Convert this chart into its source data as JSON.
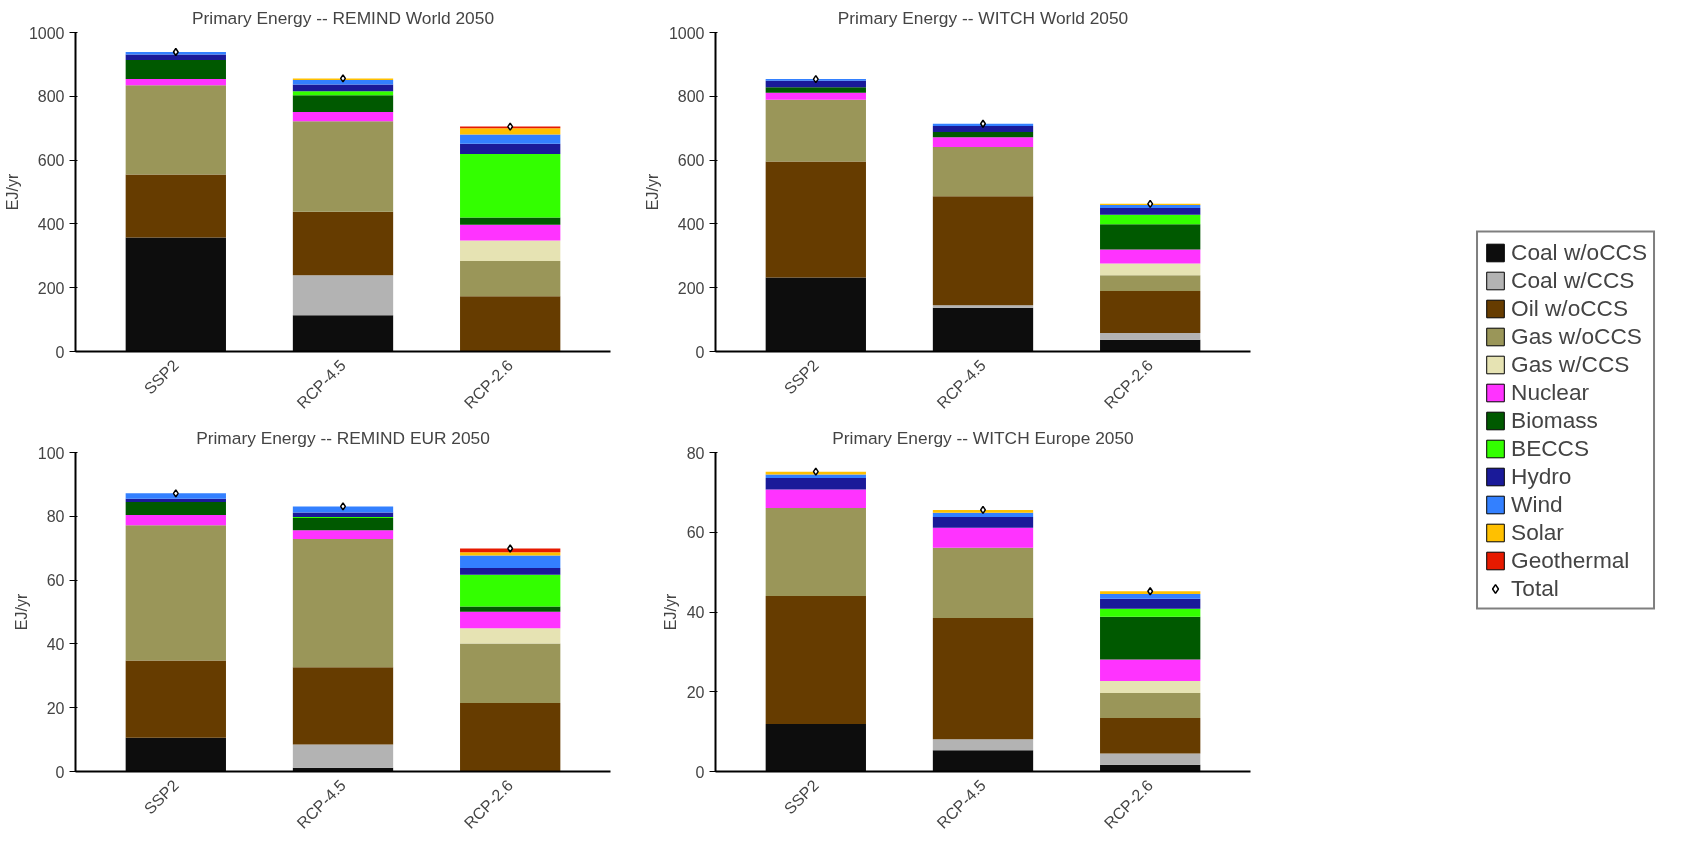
{
  "chart_data": [
    {
      "type": "bar",
      "stacked": true,
      "title": "Primary Energy -- REMIND World 2050",
      "ylabel": "EJ/yr",
      "categories": [
        "SSP2",
        "RCP-4.5",
        "RCP-2.6"
      ],
      "ylim": [
        0,
        1000
      ],
      "yticks": [
        0,
        200,
        400,
        600,
        800,
        1000
      ],
      "grid": false,
      "legend": "right",
      "series": [
        {
          "name": "Coal w/oCCS",
          "color": "#0d0d0d",
          "values": [
            357,
            114,
            null
          ]
        },
        {
          "name": "Coal w/CCS",
          "color": "#b3b3b3",
          "values": [
            null,
            125,
            null
          ]
        },
        {
          "name": "Oil w/oCCS",
          "color": "#663c00",
          "values": [
            198,
            199,
            173
          ]
        },
        {
          "name": "Gas w/oCCS",
          "color": "#9a9659",
          "values": [
            280,
            284,
            111
          ]
        },
        {
          "name": "Gas w/CCS",
          "color": "#e6e3b3",
          "values": [
            null,
            null,
            64
          ]
        },
        {
          "name": "Nuclear",
          "color": "#ff33ff",
          "values": [
            19,
            29,
            49
          ]
        },
        {
          "name": "Biomass",
          "color": "#005900",
          "values": [
            60,
            52,
            23
          ]
        },
        {
          "name": "BECCS",
          "color": "#33ff00",
          "values": [
            null,
            13,
            199
          ]
        },
        {
          "name": "Hydro",
          "color": "#1a1a99",
          "values": [
            17,
            21,
            32
          ]
        },
        {
          "name": "Wind",
          "color": "#3380ff",
          "values": [
            8,
            14,
            29
          ]
        },
        {
          "name": "Solar",
          "color": "#ffc000",
          "values": [
            null,
            5,
            20
          ]
        },
        {
          "name": "Geothermal",
          "color": "#e61a00",
          "values": [
            null,
            null,
            5
          ]
        },
        {
          "name": "Total",
          "type": "scatter",
          "marker": "diamond",
          "color": "#000000",
          "values": [
            939,
            856,
            705
          ]
        }
      ]
    },
    {
      "type": "bar",
      "stacked": true,
      "title": "Primary Energy -- WITCH World 2050",
      "ylabel": "EJ/yr",
      "categories": [
        "SSP2",
        "RCP-4.5",
        "RCP-2.6"
      ],
      "ylim": [
        0,
        1000
      ],
      "yticks": [
        0,
        200,
        400,
        600,
        800,
        1000
      ],
      "grid": false,
      "series": [
        {
          "color": "#0d0d0d",
          "values": [
            232,
            137,
            37
          ]
        },
        {
          "color": "#b3b3b3",
          "values": [
            null,
            8,
            21
          ]
        },
        {
          "color": "#663c00",
          "values": [
            364,
            342,
            132
          ]
        },
        {
          "color": "#9a9659",
          "values": [
            193,
            154,
            49
          ]
        },
        {
          "color": "#e6e3b3",
          "values": [
            null,
            null,
            37
          ]
        },
        {
          "color": "#ff33ff",
          "values": [
            22,
            31,
            44
          ]
        },
        {
          "color": "#005900",
          "values": [
            17,
            16,
            79
          ]
        },
        {
          "color": "#33ff00",
          "values": [
            null,
            null,
            30
          ]
        },
        {
          "color": "#1a1a99",
          "values": [
            21,
            19,
            21
          ]
        },
        {
          "color": "#3380ff",
          "values": [
            5,
            7,
            9
          ]
        },
        {
          "color": "#ffc000",
          "values": [
            null,
            null,
            4
          ]
        },
        {
          "type": "scatter",
          "marker": "diamond",
          "color": "#000000",
          "values": [
            854,
            714,
            463
          ]
        }
      ]
    },
    {
      "type": "bar",
      "stacked": true,
      "title": "Primary Energy -- REMIND EUR 2050",
      "ylabel": "EJ/yr",
      "categories": [
        "SSP2",
        "RCP-4.5",
        "RCP-2.6"
      ],
      "ylim": [
        0,
        100
      ],
      "yticks": [
        0,
        20,
        40,
        60,
        80,
        100
      ],
      "grid": false,
      "series": [
        {
          "color": "#0d0d0d",
          "values": [
            10.6,
            1.2,
            null
          ]
        },
        {
          "color": "#b3b3b3",
          "values": [
            null,
            7.3,
            null
          ]
        },
        {
          "color": "#663c00",
          "values": [
            24.2,
            24.2,
            21.5
          ]
        },
        {
          "color": "#9a9659",
          "values": [
            42.4,
            40.2,
            18.6
          ]
        },
        {
          "color": "#e6e3b3",
          "values": [
            null,
            null,
            4.8
          ]
        },
        {
          "color": "#ff33ff",
          "values": [
            3.2,
            2.7,
            5.2
          ]
        },
        {
          "color": "#005900",
          "values": [
            4.1,
            3.9,
            1.6
          ]
        },
        {
          "color": "#33ff00",
          "values": [
            null,
            0.3,
            10.0
          ]
        },
        {
          "color": "#1a1a99",
          "values": [
            1.0,
            1.4,
            2.1
          ]
        },
        {
          "color": "#3380ff",
          "values": [
            1.7,
            1.9,
            3.9
          ]
        },
        {
          "color": "#ffc000",
          "values": [
            null,
            null,
            1.0
          ]
        },
        {
          "color": "#e61a00",
          "values": [
            null,
            null,
            1.2
          ]
        },
        {
          "type": "scatter",
          "marker": "diamond",
          "color": "#000000",
          "values": [
            87.2,
            83.1,
            69.9
          ]
        }
      ]
    },
    {
      "type": "bar",
      "stacked": true,
      "title": "Primary Energy -- WITCH Europe 2050",
      "ylabel": "EJ/yr",
      "categories": [
        "SSP2",
        "RCP-4.5",
        "RCP-2.6"
      ],
      "ylim": [
        0,
        80
      ],
      "yticks": [
        0,
        20,
        40,
        60,
        80
      ],
      "grid": false,
      "series": [
        {
          "color": "#0d0d0d",
          "values": [
            11.9,
            5.3,
            1.7
          ]
        },
        {
          "color": "#b3b3b3",
          "values": [
            null,
            2.8,
            2.8
          ]
        },
        {
          "color": "#663c00",
          "values": [
            32.1,
            30.4,
            8.9
          ]
        },
        {
          "color": "#9a9659",
          "values": [
            22.1,
            17.6,
            6.3
          ]
        },
        {
          "color": "#e6e3b3",
          "values": [
            null,
            null,
            3.0
          ]
        },
        {
          "color": "#ff33ff",
          "values": [
            4.6,
            5.0,
            5.4
          ]
        },
        {
          "color": "#005900",
          "values": [
            null,
            null,
            10.7
          ]
        },
        {
          "color": "#33ff00",
          "values": [
            null,
            null,
            2.0
          ]
        },
        {
          "color": "#1a1a99",
          "values": [
            2.9,
            2.7,
            2.5
          ]
        },
        {
          "color": "#3380ff",
          "values": [
            0.9,
            1.1,
            1.2
          ]
        },
        {
          "color": "#ffc000",
          "values": [
            0.7,
            0.7,
            0.7
          ]
        },
        {
          "type": "scatter",
          "marker": "diamond",
          "color": "#000000",
          "values": [
            75.2,
            65.6,
            45.2
          ]
        }
      ]
    }
  ]
}
